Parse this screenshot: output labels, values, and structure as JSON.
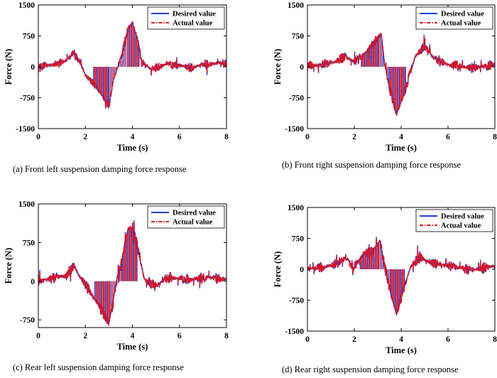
{
  "figure": {
    "series_colors": {
      "desired": "#1f3fe0",
      "actual": "#e0141b"
    }
  },
  "chart_data": [
    {
      "type": "line",
      "caption": "(a)  Front left suspension damping force response",
      "xlabel": "Time (s)",
      "ylabel": "Force (N)",
      "xlim": [
        0,
        8
      ],
      "ylim": [
        -1500,
        1500
      ],
      "xticks": [
        0,
        2,
        4,
        6,
        8
      ],
      "yticks": [
        1500,
        750,
        0,
        -750,
        -1500
      ],
      "legend": [
        "Desired value",
        "Actual value"
      ],
      "legend_position": "top-right",
      "grid": false,
      "envelope": [
        [
          0,
          20
        ],
        [
          0.6,
          40
        ],
        [
          1.2,
          150
        ],
        [
          1.5,
          350
        ],
        [
          1.8,
          80
        ],
        [
          2.0,
          -200
        ],
        [
          2.4,
          -450
        ],
        [
          2.8,
          -780
        ],
        [
          3.0,
          -950
        ],
        [
          3.2,
          -300
        ],
        [
          3.5,
          200
        ],
        [
          3.8,
          900
        ],
        [
          4.0,
          1080
        ],
        [
          4.2,
          700
        ],
        [
          4.4,
          100
        ],
        [
          4.8,
          -50
        ],
        [
          5.5,
          80
        ],
        [
          6.5,
          -20
        ],
        [
          7.0,
          60
        ],
        [
          8.0,
          90
        ]
      ],
      "noise_amplitude": 110,
      "dense_bars": [
        2.35,
        3.0,
        3.75,
        4.3
      ]
    },
    {
      "type": "line",
      "caption": "(b) Front right suspension damping force response",
      "xlabel": "Time (s)",
      "ylabel": "Force (N)",
      "xlim": [
        0,
        8
      ],
      "ylim": [
        -1500,
        1500
      ],
      "xticks": [
        0,
        2,
        4,
        6,
        8
      ],
      "yticks": [
        1500,
        750,
        0,
        -750,
        -1500
      ],
      "legend": [
        "Desired value",
        "Actual value"
      ],
      "legend_position": "top-right",
      "grid": false,
      "envelope": [
        [
          0,
          20
        ],
        [
          0.6,
          50
        ],
        [
          1.2,
          120
        ],
        [
          1.6,
          250
        ],
        [
          2.0,
          120
        ],
        [
          2.5,
          350
        ],
        [
          3.0,
          700
        ],
        [
          3.15,
          800
        ],
        [
          3.3,
          50
        ],
        [
          3.5,
          -500
        ],
        [
          3.8,
          -1150
        ],
        [
          4.1,
          -700
        ],
        [
          4.4,
          -100
        ],
        [
          4.6,
          250
        ],
        [
          5.0,
          500
        ],
        [
          5.4,
          200
        ],
        [
          6.0,
          50
        ],
        [
          7.0,
          -30
        ],
        [
          8.0,
          60
        ]
      ],
      "noise_amplitude": 130,
      "dense_bars": [
        2.3,
        3.05,
        3.5,
        4.2
      ]
    },
    {
      "type": "line",
      "caption": "(c) Rear left suspension damping force response",
      "xlabel": "Time (s)",
      "ylabel": "Force (N)",
      "xlim": [
        0,
        8
      ],
      "ylim": [
        -900,
        1500
      ],
      "xticks": [
        0,
        2,
        4,
        6,
        8
      ],
      "yticks": [
        1500,
        750,
        0,
        -750
      ],
      "legend": [
        "Desired value",
        "Actual value"
      ],
      "legend_position": "top-right",
      "grid": false,
      "envelope": [
        [
          0,
          10
        ],
        [
          0.6,
          50
        ],
        [
          1.2,
          120
        ],
        [
          1.5,
          300
        ],
        [
          1.8,
          50
        ],
        [
          2.2,
          -200
        ],
        [
          2.6,
          -500
        ],
        [
          3.0,
          -820
        ],
        [
          3.2,
          -300
        ],
        [
          3.5,
          300
        ],
        [
          3.8,
          1000
        ],
        [
          4.0,
          1050
        ],
        [
          4.2,
          700
        ],
        [
          4.5,
          50
        ],
        [
          5.0,
          -100
        ],
        [
          5.5,
          80
        ],
        [
          6.5,
          30
        ],
        [
          7.2,
          80
        ],
        [
          8.0,
          40
        ]
      ],
      "noise_amplitude": 120,
      "dense_bars": [
        2.4,
        3.05,
        3.55,
        4.2
      ]
    },
    {
      "type": "line",
      "caption": "(d) Rear right suspension damping force response",
      "xlabel": "Time (s)",
      "ylabel": "Force (N)",
      "xlim": [
        0,
        8
      ],
      "ylim": [
        -1500,
        1500
      ],
      "xticks": [
        0,
        2,
        4,
        6,
        8
      ],
      "yticks": [
        1500,
        750,
        0,
        -750,
        -1500
      ],
      "legend": [
        "Desired value",
        "Actual value"
      ],
      "legend_position": "top-right",
      "grid": false,
      "envelope": [
        [
          0,
          10
        ],
        [
          0.6,
          40
        ],
        [
          1.2,
          120
        ],
        [
          1.6,
          280
        ],
        [
          2.0,
          50
        ],
        [
          2.4,
          400
        ],
        [
          2.8,
          450
        ],
        [
          3.1,
          700
        ],
        [
          3.3,
          50
        ],
        [
          3.6,
          -700
        ],
        [
          3.8,
          -1080
        ],
        [
          4.1,
          -500
        ],
        [
          4.4,
          50
        ],
        [
          4.8,
          300
        ],
        [
          5.2,
          180
        ],
        [
          6.0,
          80
        ],
        [
          7.0,
          -20
        ],
        [
          8.0,
          80
        ]
      ],
      "noise_amplitude": 140,
      "dense_bars": [
        2.25,
        3.05,
        3.55,
        4.15
      ]
    }
  ]
}
